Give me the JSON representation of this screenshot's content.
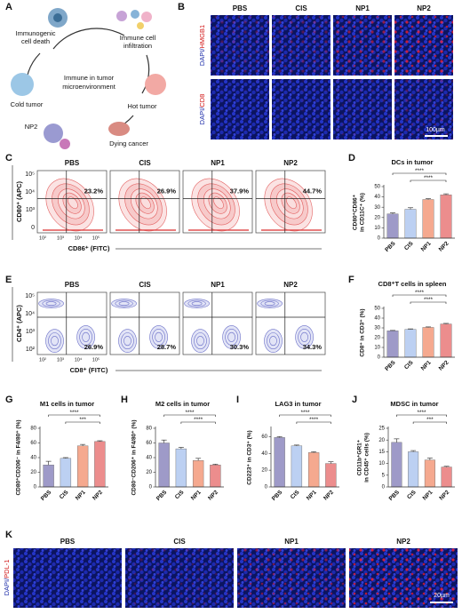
{
  "panel_labels": [
    "A",
    "B",
    "C",
    "D",
    "E",
    "F",
    "G",
    "H",
    "I",
    "J",
    "K"
  ],
  "diagram_a": {
    "immunogenic": [
      "Immunogenic",
      "cell death"
    ],
    "infiltration": [
      "Immune cell",
      "infiltration"
    ],
    "center": [
      "Immune in tumor",
      "microenvironment"
    ],
    "hot": "Hot tumor",
    "dying": "Dying cancer",
    "np2": "NP2",
    "cold": "Cold tumor"
  },
  "panel_b": {
    "columns": [
      "PBS",
      "CIS",
      "NP1",
      "NP2"
    ],
    "rows": [
      [
        "DAPI/",
        "HMGB1"
      ],
      [
        "DAPI/",
        "CD8"
      ]
    ],
    "scale_bar": "100µm"
  },
  "panel_c": {
    "columns": [
      "PBS",
      "CIS",
      "NP1",
      "NP2"
    ],
    "percents": [
      "23.2%",
      "26.9%",
      "37.9%",
      "44.7%"
    ],
    "y_label": "CD80⁺ (APC)",
    "x_label": "CD86⁺ (FITC)",
    "yticks": [
      "10⁵",
      "10⁴",
      "10³",
      "0"
    ],
    "xticks": [
      "10²",
      "10³",
      "10⁴",
      "10⁵"
    ]
  },
  "panel_e": {
    "columns": [
      "PBS",
      "CIS",
      "NP1",
      "NP2"
    ],
    "percents": [
      "26.9%",
      "28.7%",
      "30.3%",
      "34.3%"
    ],
    "y_label": "CD4⁺ (APC)",
    "x_label": "CD8⁺ (FITC)",
    "yticks": [
      "10⁵",
      "10⁴",
      "10³",
      "10²"
    ],
    "xticks": [
      "10²",
      "10³",
      "10⁴",
      "10⁵"
    ]
  },
  "panel_k": {
    "columns": [
      "PBS",
      "CIS",
      "NP1",
      "NP2"
    ],
    "row": [
      "DAPI/",
      "PDL-1"
    ],
    "scale_bar": "20µm"
  },
  "chart_data": [
    {
      "type": "bar",
      "title": "DCs in tumor",
      "ylabel": [
        "CD80⁺CD86⁺",
        "in CD11C⁺ (%)"
      ],
      "categories": [
        "PBS",
        "CIS",
        "NP1",
        "NP2"
      ],
      "values": [
        23.5,
        28,
        37.5,
        42
      ],
      "errors": [
        1,
        1.5,
        0.8,
        1
      ],
      "colors": [
        "#9e9ac8",
        "#bcd0f2",
        "#f5a98f",
        "#ec8d8d"
      ],
      "ylim": [
        0,
        50
      ],
      "yticks": [
        0,
        10,
        20,
        30,
        40,
        50
      ],
      "significance": [
        {
          "pair": [
            0,
            3
          ],
          "label": "****"
        },
        {
          "pair": [
            1,
            3
          ],
          "label": "****"
        }
      ]
    },
    {
      "type": "bar",
      "title": "CD8⁺T cells in spleen",
      "ylabel": [
        "CD8⁺ in CD3⁺ (%)"
      ],
      "categories": [
        "PBS",
        "CIS",
        "NP1",
        "NP2"
      ],
      "values": [
        27,
        28.5,
        30.5,
        34
      ],
      "errors": [
        0.4,
        0.5,
        0.5,
        0.6
      ],
      "colors": [
        "#9e9ac8",
        "#bcd0f2",
        "#f5a98f",
        "#ec8d8d"
      ],
      "ylim": [
        0,
        50
      ],
      "yticks": [
        0,
        10,
        20,
        30,
        40,
        50
      ],
      "significance": [
        {
          "pair": [
            0,
            3
          ],
          "label": "****"
        },
        {
          "pair": [
            1,
            3
          ],
          "label": "****"
        }
      ]
    },
    {
      "type": "bar",
      "title": "M1 cells in tumor",
      "ylabel": [
        "CD80⁺CD206⁻ in F4/80⁺ (%)"
      ],
      "categories": [
        "PBS",
        "CIS",
        "NP1",
        "NP2"
      ],
      "values": [
        30,
        39,
        56,
        62
      ],
      "errors": [
        5,
        1,
        2,
        1
      ],
      "colors": [
        "#9e9ac8",
        "#bcd0f2",
        "#f5a98f",
        "#ec8d8d"
      ],
      "ylim": [
        0,
        80
      ],
      "yticks": [
        0,
        20,
        40,
        60,
        80
      ],
      "significance": [
        {
          "pair": [
            0,
            3
          ],
          "label": "****"
        },
        {
          "pair": [
            1,
            3
          ],
          "label": "***"
        }
      ]
    },
    {
      "type": "bar",
      "title": "M2 cells in tumor",
      "ylabel": [
        "CD80⁻CD206⁺ in F4/80⁺ (%)"
      ],
      "categories": [
        "PBS",
        "CIS",
        "NP1",
        "NP2"
      ],
      "values": [
        60,
        52,
        36,
        30
      ],
      "errors": [
        4,
        2,
        3,
        1
      ],
      "colors": [
        "#9e9ac8",
        "#bcd0f2",
        "#f5a98f",
        "#ec8d8d"
      ],
      "ylim": [
        0,
        80
      ],
      "yticks": [
        0,
        20,
        40,
        60,
        80
      ],
      "significance": [
        {
          "pair": [
            0,
            3
          ],
          "label": "****"
        },
        {
          "pair": [
            1,
            3
          ],
          "label": "****"
        }
      ]
    },
    {
      "type": "bar",
      "title": "LAG3 in tumor",
      "ylabel": [
        "CD223⁺ in CD3⁺ (%)"
      ],
      "categories": [
        "PBS",
        "CIS",
        "NP1",
        "NP2"
      ],
      "values": [
        59,
        49,
        41,
        28
      ],
      "errors": [
        1,
        1,
        1,
        2
      ],
      "colors": [
        "#9e9ac8",
        "#bcd0f2",
        "#f5a98f",
        "#ec8d8d"
      ],
      "ylim": [
        0,
        70
      ],
      "yticks": [
        0,
        20,
        40,
        60
      ],
      "significance": [
        {
          "pair": [
            0,
            3
          ],
          "label": "****"
        },
        {
          "pair": [
            1,
            3
          ],
          "label": "****"
        }
      ]
    },
    {
      "type": "bar",
      "title": "MDSC in tumor",
      "ylabel": [
        "CD11b⁺GR1⁺",
        "in CD45⁺ cells (%)"
      ],
      "categories": [
        "PBS",
        "CIS",
        "NP1",
        "NP2"
      ],
      "values": [
        19,
        15,
        11.5,
        8.5
      ],
      "errors": [
        1.5,
        0.5,
        0.8,
        0.3
      ],
      "colors": [
        "#9e9ac8",
        "#bcd0f2",
        "#f5a98f",
        "#ec8d8d"
      ],
      "ylim": [
        0,
        25
      ],
      "yticks": [
        0,
        5,
        10,
        15,
        20,
        25
      ],
      "significance": [
        {
          "pair": [
            0,
            3
          ],
          "label": "****"
        },
        {
          "pair": [
            1,
            3
          ],
          "label": "***"
        }
      ]
    }
  ]
}
